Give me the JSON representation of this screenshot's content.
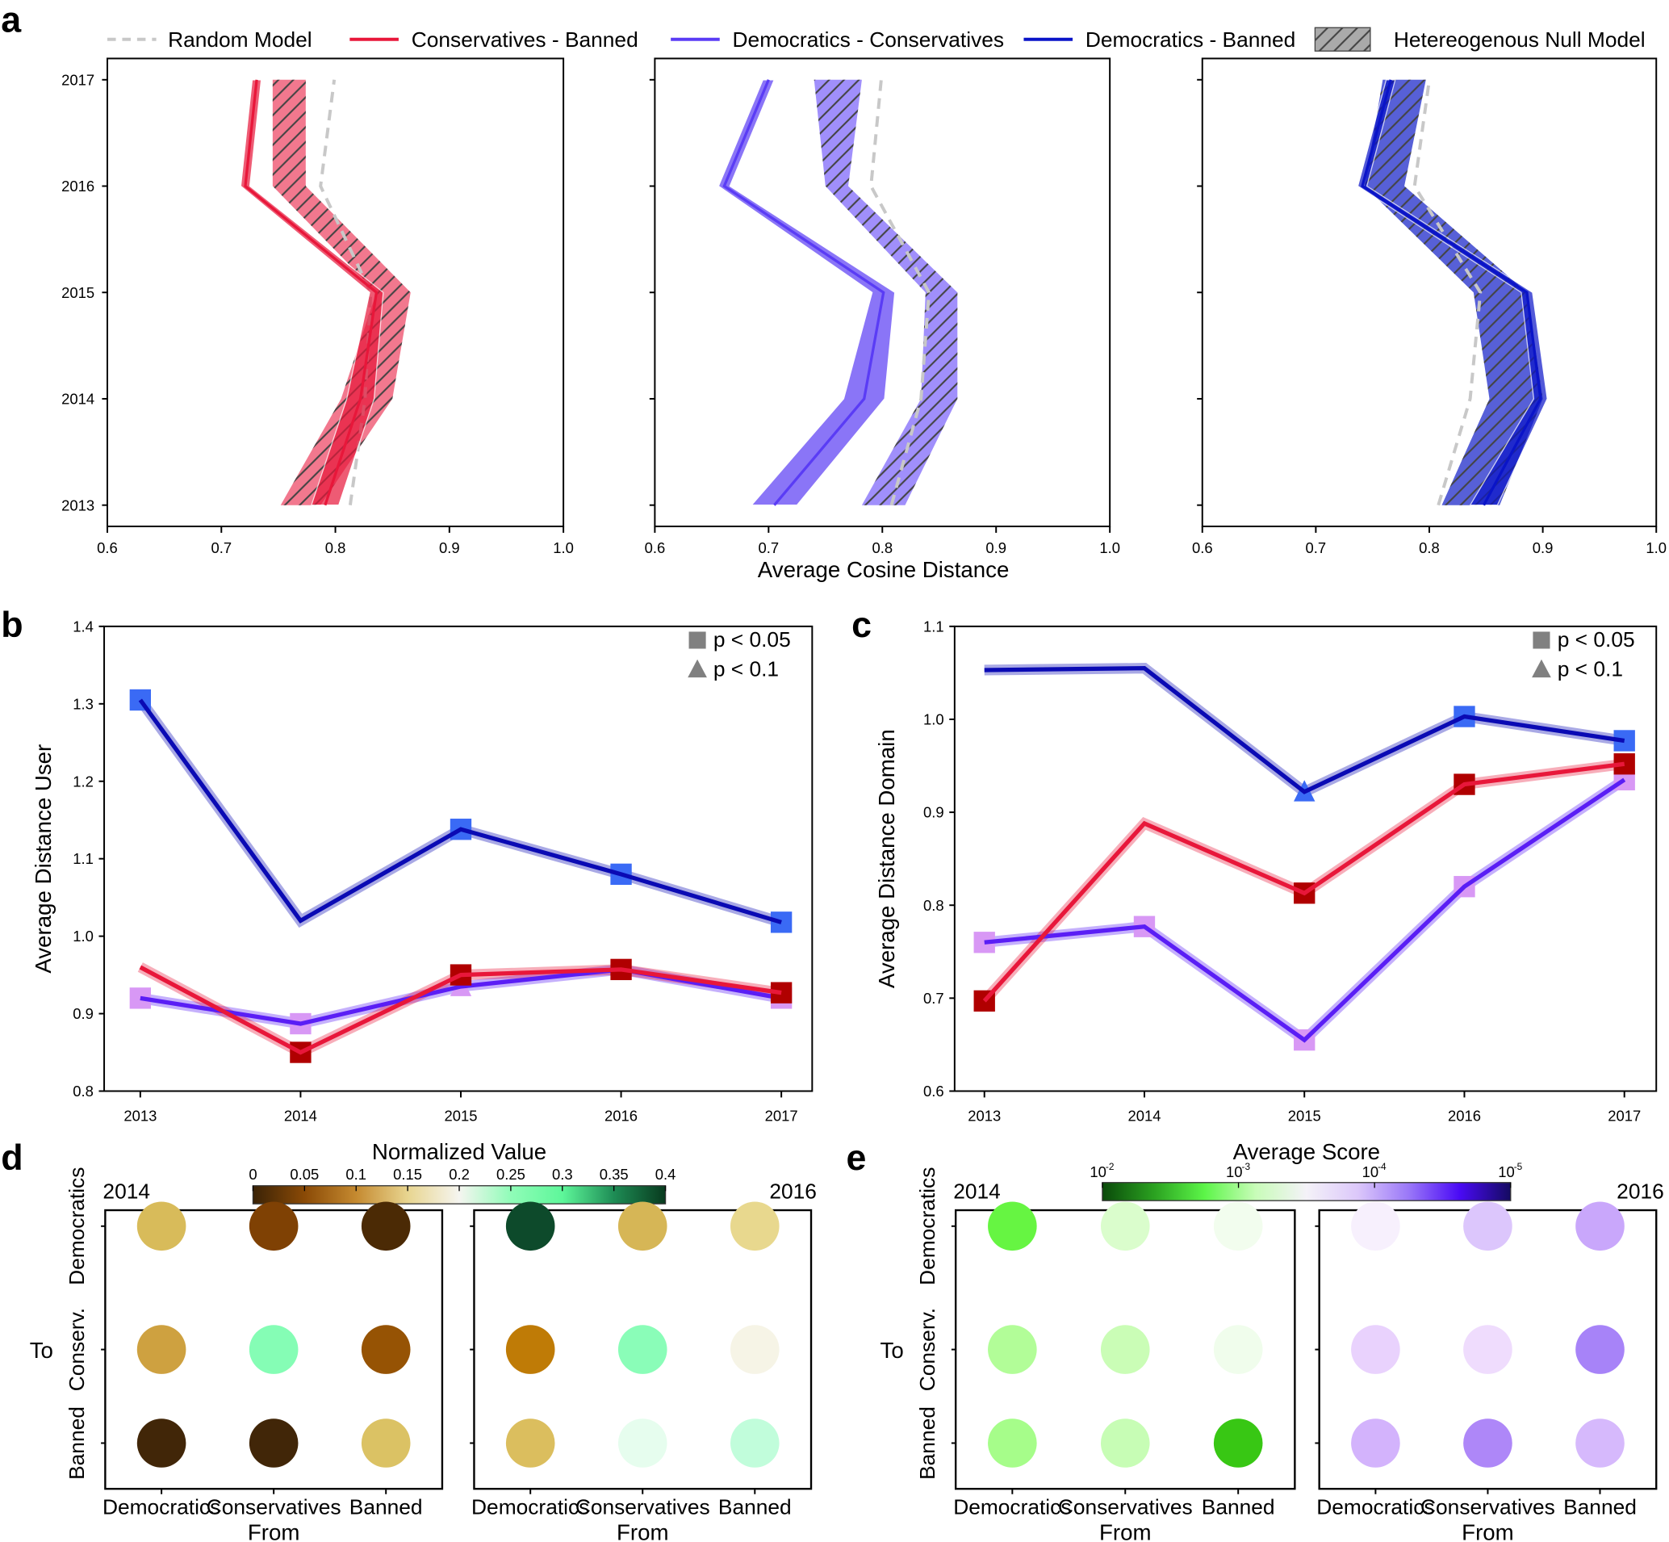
{
  "chart_data": [
    {
      "panel": "a",
      "type": "line",
      "orientation": "horizontal-value",
      "panel_label": "a",
      "xlabel": "Average Cosine Distance",
      "ylabel": "",
      "xlim": [
        0.6,
        1.0
      ],
      "xticks": [
        "0.6",
        "0.7",
        "0.8",
        "0.9",
        "1.0"
      ],
      "years": [
        2013,
        2014,
        2015,
        2016,
        2017
      ],
      "legend": [
        {
          "name": "Random Model",
          "color": "#c8c8c8",
          "style": "dashed"
        },
        {
          "name": "Conservatives - Banned",
          "color": "#e8173a"
        },
        {
          "name": "Democratics - Conservatives",
          "color": "#5a3cf5"
        },
        {
          "name": "Democratics - Banned",
          "color": "#0a14c8"
        },
        {
          "name": "Hetereogenous Null Model",
          "color": "#aaaaaa",
          "style": "hatched"
        }
      ],
      "subplots": [
        {
          "series": "Conservatives - Banned",
          "color": "#e8173a",
          "band": "#f0607a",
          "values": [
            0.791,
            0.822,
            0.836,
            0.721,
            0.731
          ],
          "ci": [
            0.012,
            0.012,
            0.006,
            0.004,
            0.004
          ],
          "null_low": [
            0.752,
            0.805,
            0.836,
            0.745,
            0.745
          ],
          "null_high": [
            0.787,
            0.85,
            0.866,
            0.774,
            0.774
          ],
          "random": [
            0.813,
            0.826,
            0.831,
            0.787,
            0.799
          ]
        },
        {
          "series": "Democratics - Conservatives",
          "color": "#5a3cf5",
          "band": "#8f7bfa",
          "values": [
            0.705,
            0.784,
            0.801,
            0.661,
            0.7
          ],
          "ci": [
            0.02,
            0.018,
            0.01,
            0.005,
            0.005
          ],
          "null_low": [
            0.782,
            0.834,
            0.838,
            0.75,
            0.74
          ],
          "null_high": [
            0.82,
            0.866,
            0.866,
            0.77,
            0.782
          ],
          "random": [
            0.808,
            0.834,
            0.841,
            0.79,
            0.799
          ]
        },
        {
          "series": "Democratics - Banned",
          "color": "#0a14c8",
          "band": "#3a44d0",
          "values": [
            0.848,
            0.898,
            0.886,
            0.741,
            0.766
          ],
          "ci": [
            0.012,
            0.006,
            0.005,
            0.004,
            0.004
          ],
          "null_low": [
            0.811,
            0.853,
            0.839,
            0.743,
            0.759
          ],
          "null_high": [
            0.862,
            0.9,
            0.886,
            0.778,
            0.797
          ],
          "random": [
            0.808,
            0.836,
            0.845,
            0.787,
            0.8
          ]
        }
      ]
    },
    {
      "panel": "b",
      "type": "line",
      "panel_label": "b",
      "ylabel": "Average Distance User",
      "xlabel": "",
      "ylim": [
        0.8,
        1.4
      ],
      "yticks": [
        "0.8",
        "0.9",
        "1.0",
        "1.1",
        "1.2",
        "1.3",
        "1.4"
      ],
      "categories": [
        "2013",
        "2014",
        "2015",
        "2016",
        "2017"
      ],
      "legend": [
        {
          "marker": "square",
          "label": "p < 0.05"
        },
        {
          "marker": "triangle",
          "label": "p < 0.1"
        }
      ],
      "series": [
        {
          "line": "#5a1ef5",
          "marker_color": "#d898f5",
          "values": [
            0.92,
            0.887,
            0.935,
            0.957,
            0.92
          ],
          "markers": [
            "square",
            "square",
            "triangle",
            "none",
            "square"
          ]
        },
        {
          "line": "#e8173a",
          "marker_color": "#b00000",
          "values": [
            0.96,
            0.85,
            0.95,
            0.957,
            0.927
          ],
          "markers": [
            "none",
            "square",
            "square",
            "square",
            "square"
          ]
        },
        {
          "line": "#0a0ab4",
          "marker_color": "#3a6af5",
          "values": [
            1.305,
            1.02,
            1.138,
            1.08,
            1.018
          ],
          "markers": [
            "square",
            "none",
            "square",
            "square",
            "square"
          ]
        }
      ]
    },
    {
      "panel": "c",
      "type": "line",
      "panel_label": "c",
      "ylabel": "Average Distance Domain",
      "xlabel": "",
      "ylim": [
        0.6,
        1.1
      ],
      "yticks": [
        "0.6",
        "0.7",
        "0.8",
        "0.9",
        "1.0",
        "1.1"
      ],
      "categories": [
        "2013",
        "2014",
        "2015",
        "2016",
        "2017"
      ],
      "legend": [
        {
          "marker": "square",
          "label": "p < 0.05"
        },
        {
          "marker": "triangle",
          "label": "p < 0.1"
        }
      ],
      "series": [
        {
          "line": "#5a1ef5",
          "marker_color": "#d898f5",
          "values": [
            0.76,
            0.777,
            0.655,
            0.82,
            0.935
          ],
          "markers": [
            "square",
            "square",
            "square",
            "square",
            "square"
          ]
        },
        {
          "line": "#e8173a",
          "marker_color": "#b00000",
          "values": [
            0.697,
            0.888,
            0.813,
            0.93,
            0.952
          ],
          "markers": [
            "square",
            "none",
            "square",
            "square",
            "square"
          ]
        },
        {
          "line": "#0a0ab4",
          "marker_color": "#3a6af5",
          "values": [
            1.053,
            1.055,
            0.922,
            1.003,
            0.977
          ],
          "markers": [
            "none",
            "none",
            "triangle",
            "square",
            "square"
          ]
        }
      ]
    },
    {
      "panel": "d",
      "type": "heatmap",
      "panel_label": "d",
      "colorbar_title": "Normalized Value",
      "colorbar_ticks": [
        "0",
        "0.05",
        "0.1",
        "0.15",
        "0.2",
        "0.25",
        "0.3",
        "0.35",
        "0.4"
      ],
      "colorbar_colors": [
        "#3a2206",
        "#8a4a06",
        "#c58a30",
        "#e8d590",
        "#f5f5f0",
        "#90fcb8",
        "#5ef79a",
        "#1e8c55",
        "#083a1e"
      ],
      "rows": [
        "Democratics",
        "Conserv.",
        "Banned"
      ],
      "cols": [
        "Democratics",
        "Conservatives",
        "Banned"
      ],
      "ylabel": "To",
      "xlabel": "From",
      "maps": [
        {
          "year": "2014",
          "colors": [
            [
              "#d8bb5a",
              "#7f4104",
              "#4b2a05"
            ],
            [
              "#cea140",
              "#85fdb5",
              "#965304"
            ],
            [
              "#412608",
              "#412608",
              "#dbc264"
            ]
          ],
          "values": [
            [
              0.14,
              0.04,
              0.015
            ],
            [
              0.12,
              0.29,
              0.05
            ],
            [
              0.01,
              0.01,
              0.145
            ]
          ]
        },
        {
          "year": "2016",
          "colors": [
            [
              "#0d4a2b",
              "#d6b656",
              "#e8d88e"
            ],
            [
              "#bf7b06",
              "#8afdb8",
              "#f6f4e6"
            ],
            [
              "#dbbe5e",
              "#e6fdee",
              "#c1fddb"
            ]
          ],
          "values": [
            [
              0.38,
              0.14,
              0.16
            ],
            [
              0.08,
              0.29,
              0.19
            ],
            [
              0.14,
              0.22,
              0.25
            ]
          ]
        }
      ]
    },
    {
      "panel": "e",
      "type": "heatmap",
      "panel_label": "e",
      "colorbar_title": "Average Score",
      "colorbar_scale": "log",
      "colorbar_ticks": [
        {
          "base": "10",
          "exp": "-2"
        },
        {
          "base": "10",
          "exp": "-3"
        },
        {
          "base": "10",
          "exp": "-4"
        },
        {
          "base": "10",
          "exp": "-5"
        }
      ],
      "colorbar_colors": [
        "#0a4a0a",
        "#2aa020",
        "#5cf548",
        "#c8fcb8",
        "#f4f2f8",
        "#dcc8fa",
        "#9a78f8",
        "#4a0af5",
        "#140a60"
      ],
      "rows": [
        "Democratics",
        "Conserv.",
        "Banned"
      ],
      "cols": [
        "Democratics",
        "Conservatives",
        "Banned"
      ],
      "ylabel": "To",
      "xlabel": "From",
      "maps": [
        {
          "year": "2014",
          "colors": [
            [
              "#66f542",
              "#dafdcc",
              "#f2fdee"
            ],
            [
              "#b2fd98",
              "#cafdb6",
              "#f0fdec"
            ],
            [
              "#a6fd8a",
              "#c7fdb5",
              "#38c714"
            ]
          ]
        },
        {
          "year": "2016",
          "colors": [
            [
              "#f7f0fd",
              "#dcc6fc",
              "#c9a7fb"
            ],
            [
              "#e9d2fd",
              "#efdcfd",
              "#a783f8"
            ],
            [
              "#d3b3fc",
              "#ae87f8",
              "#d6b9fc"
            ]
          ]
        }
      ]
    }
  ]
}
